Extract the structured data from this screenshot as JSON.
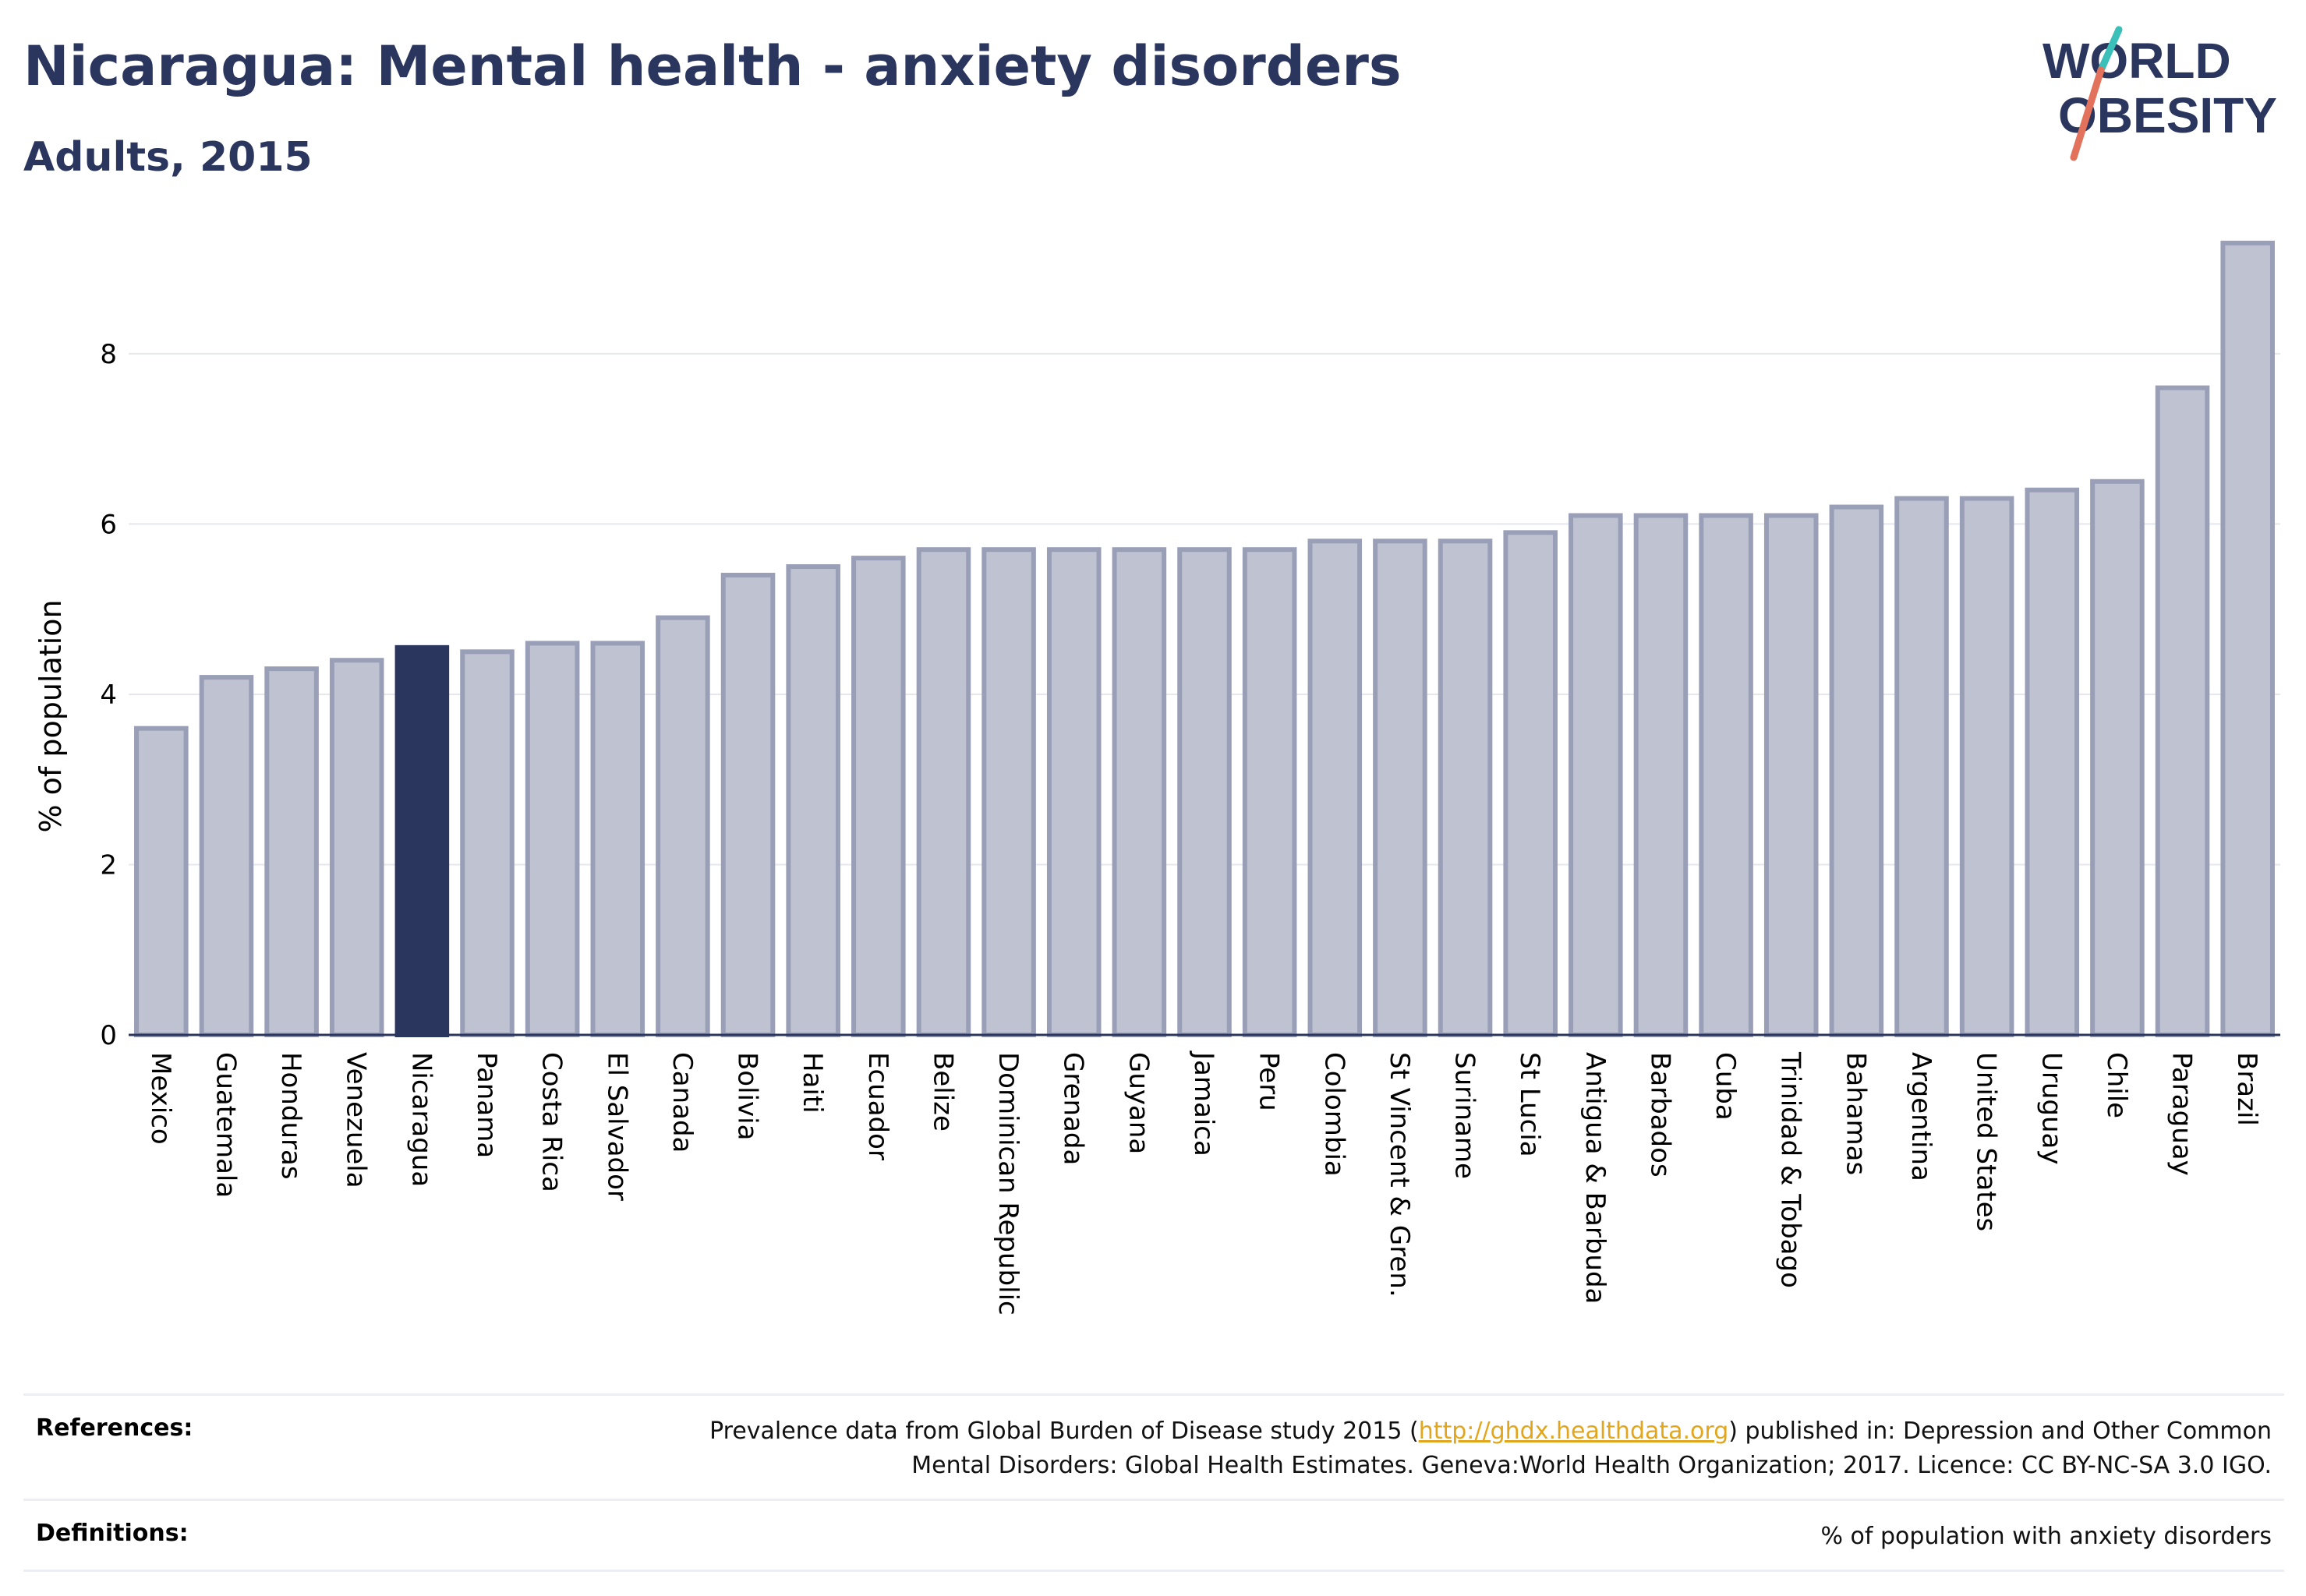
{
  "header": {
    "title": "Nicaragua: Mental health - anxiety disorders",
    "subtitle": "Adults, 2015"
  },
  "logo": {
    "line1": "WORLD",
    "line2": "OBESITY",
    "colors": {
      "text": "#2b365f",
      "slash_teal": "#3bbfb9",
      "slash_coral": "#e2725b"
    }
  },
  "colors": {
    "bar_fill": "#bfc2d0",
    "bar_stroke": "#9a9fb8",
    "highlight_fill": "#2b365f",
    "grid": "#e6e7ec",
    "axis": "#2b365f"
  },
  "chart_data": {
    "type": "bar",
    "title": "Nicaragua: Mental health - anxiety disorders",
    "subtitle": "Adults, 2015",
    "xlabel": "",
    "ylabel": "% of population",
    "ylim": [
      0,
      9.5
    ],
    "yticks": [
      0,
      2,
      4,
      6,
      8
    ],
    "grid": true,
    "highlight": "Nicaragua",
    "categories": [
      "Mexico",
      "Guatemala",
      "Honduras",
      "Venezuela",
      "Nicaragua",
      "Panama",
      "Costa Rica",
      "El Salvador",
      "Canada",
      "Bolivia",
      "Haiti",
      "Ecuador",
      "Belize",
      "Dominican Republic",
      "Grenada",
      "Guyana",
      "Jamaica",
      "Peru",
      "Colombia",
      "St Vincent & Gren.",
      "Suriname",
      "St Lucia",
      "Antigua & Barbuda",
      "Barbados",
      "Cuba",
      "Trinidad & Tobago",
      "Bahamas",
      "Argentina",
      "United States",
      "Uruguay",
      "Chile",
      "Paraguay",
      "Brazil"
    ],
    "values": [
      3.6,
      4.2,
      4.3,
      4.4,
      4.55,
      4.5,
      4.6,
      4.6,
      4.9,
      5.4,
      5.5,
      5.6,
      5.7,
      5.7,
      5.7,
      5.7,
      5.7,
      5.7,
      5.8,
      5.8,
      5.8,
      5.9,
      6.1,
      6.1,
      6.1,
      6.1,
      6.2,
      6.3,
      6.3,
      6.4,
      6.5,
      7.6,
      9.3
    ]
  },
  "footer": {
    "references_label": "References:",
    "references_text_before": "Prevalence data from Global Burden of Disease study 2015 (",
    "references_link": "http://ghdx.healthdata.org",
    "references_text_after": ") published in: Depression and Other Common",
    "references_line2": "Mental Disorders: Global Health Estimates. Geneva:World Health Organization; 2017. Licence: CC BY-NC-SA 3.0 IGO.",
    "definitions_label": "Definitions:",
    "definitions_text": "% of population with anxiety disorders"
  }
}
